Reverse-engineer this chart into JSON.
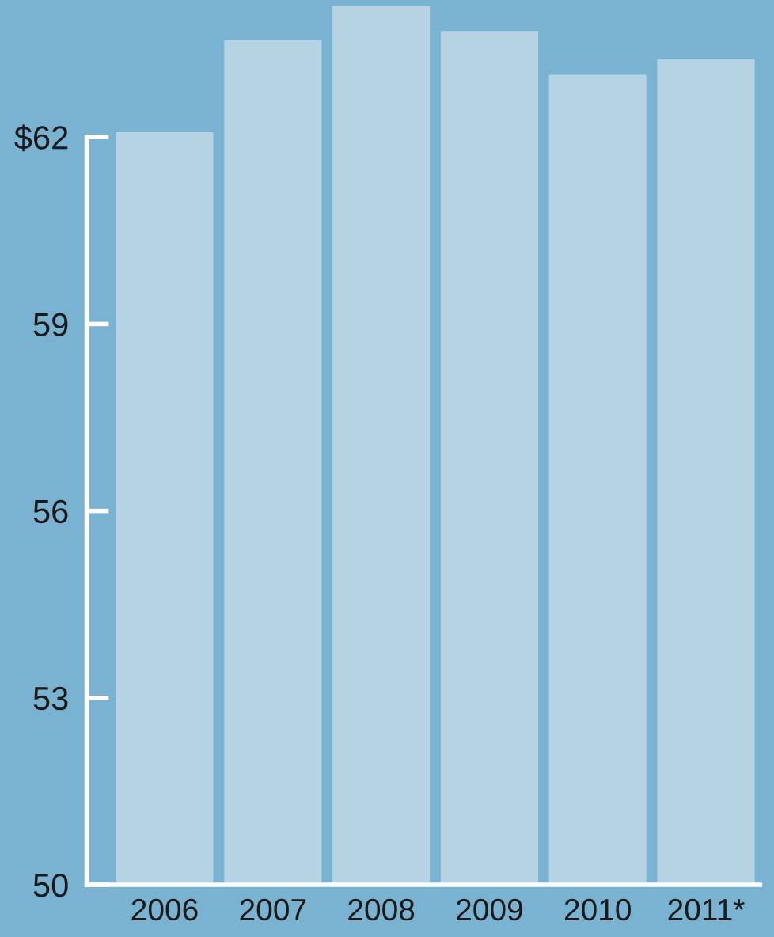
{
  "chart_data": {
    "type": "bar",
    "categories": [
      "2006",
      "2007",
      "2008",
      "2009",
      "2010",
      "2011*"
    ],
    "values": [
      62.08,
      63.56,
      64.1,
      63.7,
      63.0,
      63.25
    ],
    "color": "#b5d3e3",
    "ylim": [
      50,
      64.2
    ],
    "yticks": [
      50,
      53,
      56,
      59,
      {
        "value": 62,
        "label": "$62"
      }
    ],
    "grid": false
  }
}
